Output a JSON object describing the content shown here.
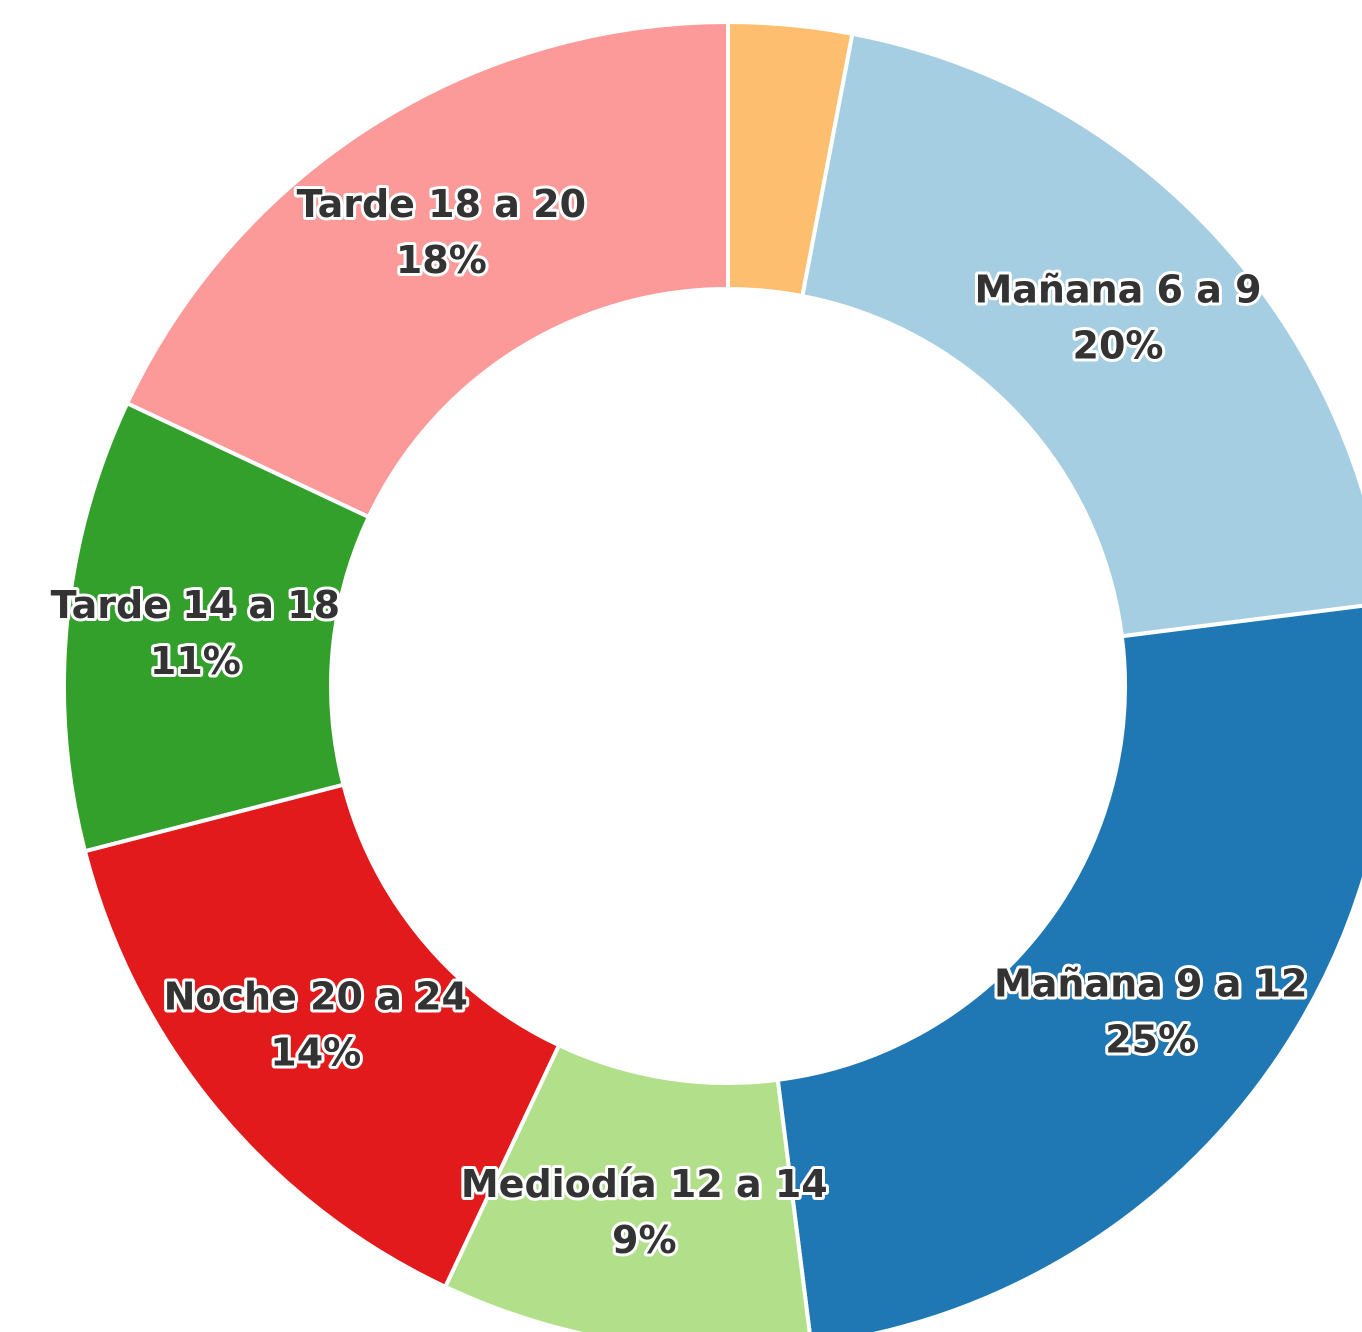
{
  "chart_data": {
    "type": "donut",
    "categories": [
      null,
      "Mañana 6 a 9",
      "Mañana 9 a 12",
      "Mediodía 12 a 14",
      "Noche 20 a 24",
      "Tarde 14 a 18",
      "Tarde 18 a 20"
    ],
    "values": [
      3,
      20,
      25,
      9,
      14,
      11,
      18
    ],
    "value_labels": [
      null,
      "20%",
      "25%",
      "9%",
      "14%",
      "11%",
      "18%"
    ],
    "colors": [
      "#fdbf6f",
      "#a6cee3",
      "#1f78b4",
      "#b2df8a",
      "#e31a1c",
      "#33a02c",
      "#fb9a99"
    ]
  }
}
